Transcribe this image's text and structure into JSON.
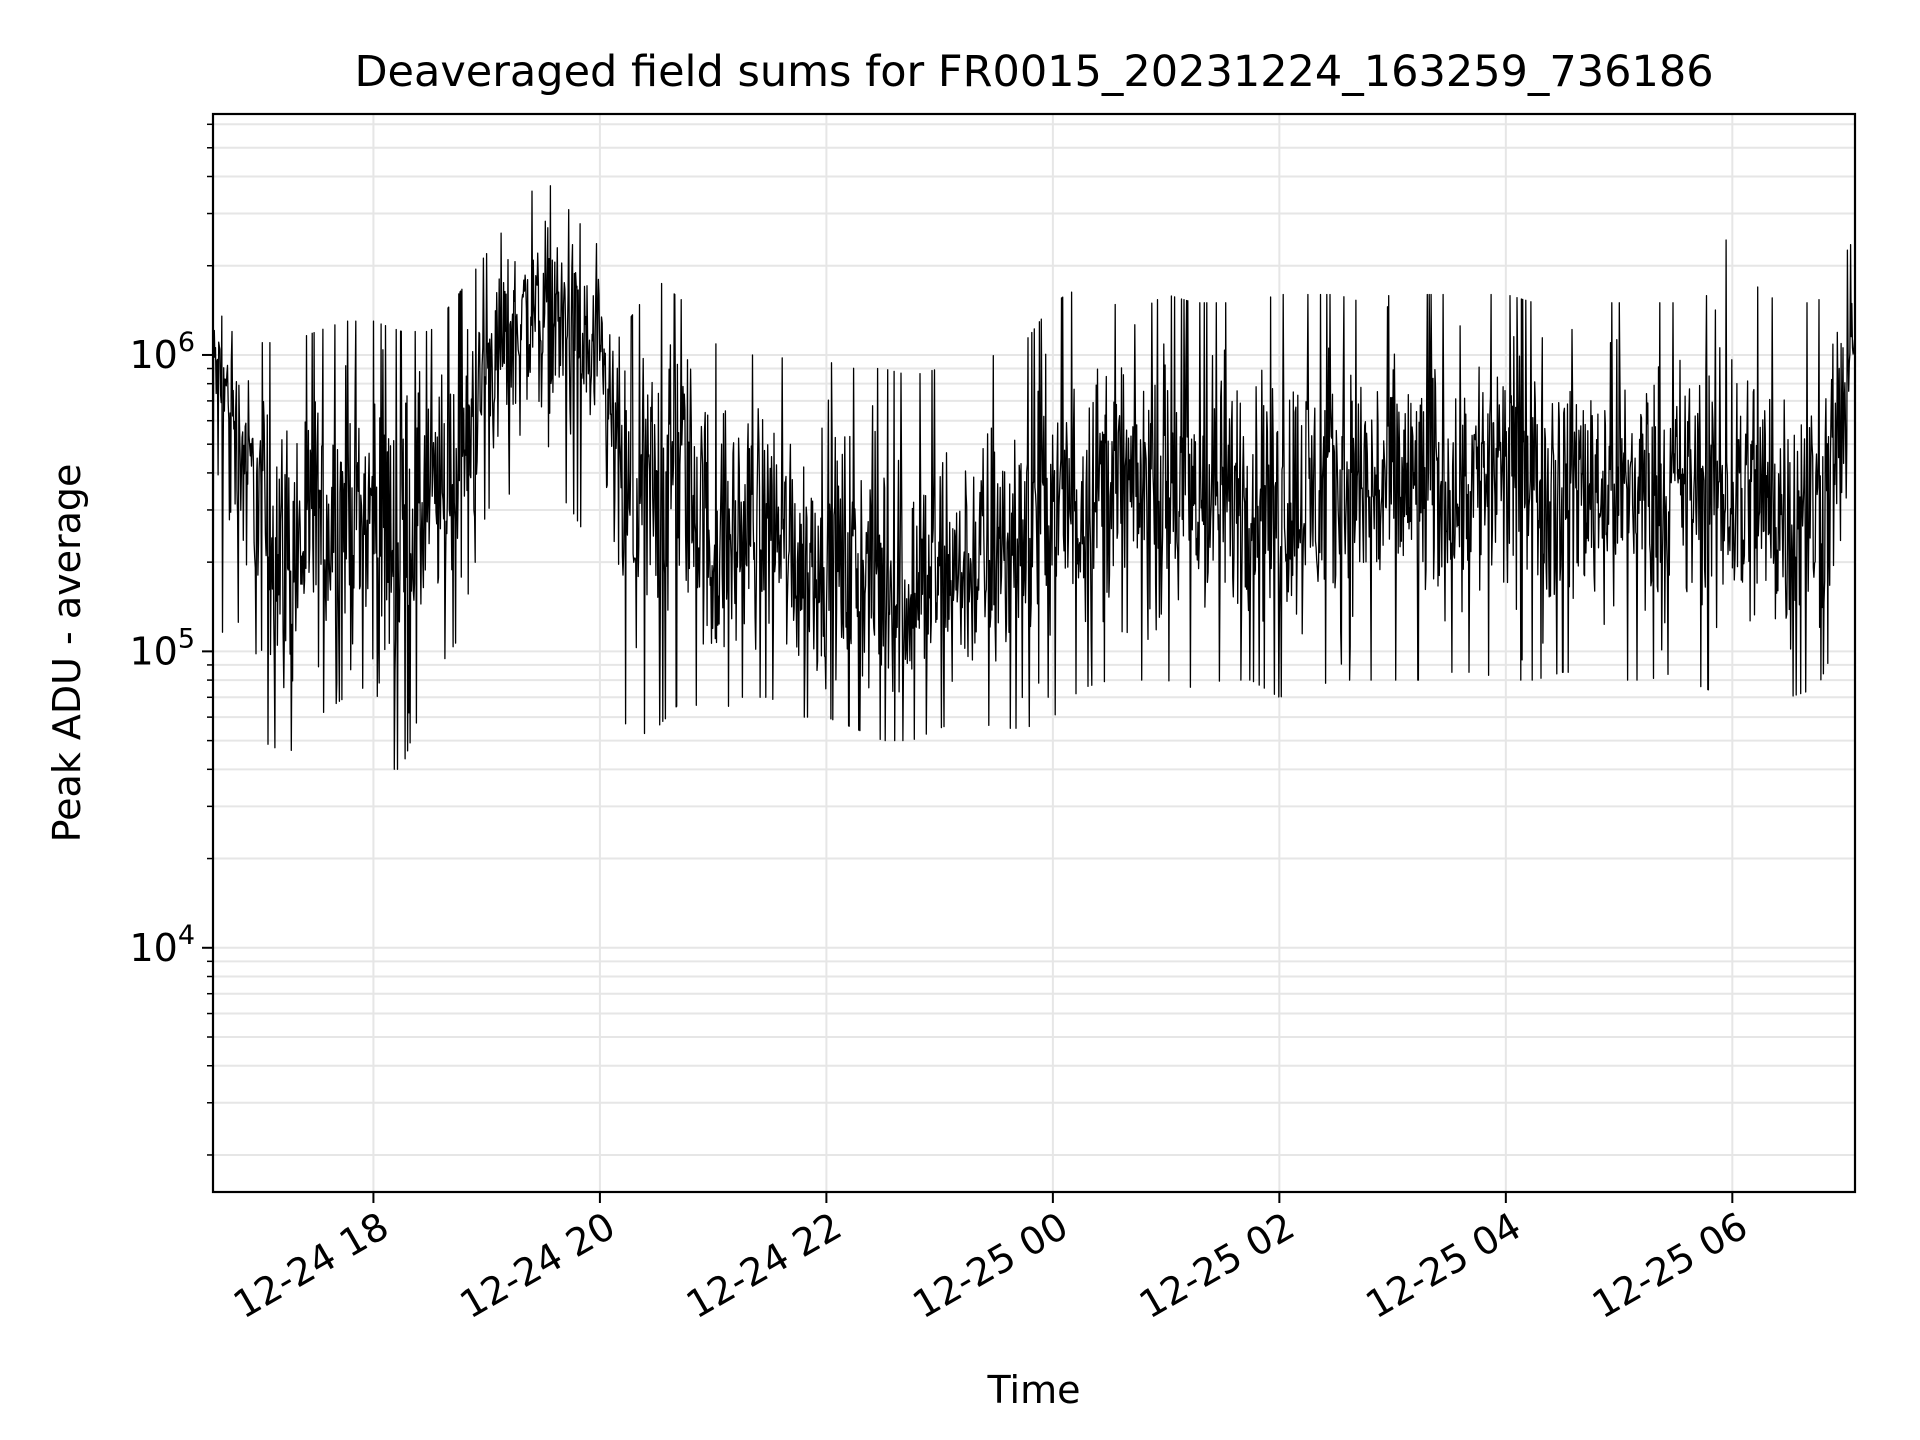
{
  "chart_data": {
    "type": "line",
    "title": "Deaveraged field sums for FR0015_20231224_163259_736186",
    "xlabel": "Time",
    "ylabel": "Peak ADU - average",
    "x_range": [
      "2023-12-24 16:35",
      "2023-12-25 07:05"
    ],
    "ylim": [
      1500,
      6500000
    ],
    "yscale": "log",
    "grid": true,
    "line_color": "#000000",
    "x_ticks": [
      {
        "label": "12-24 18",
        "time": "2023-12-24 18:00"
      },
      {
        "label": "12-24 20",
        "time": "2023-12-24 20:00"
      },
      {
        "label": "12-24 22",
        "time": "2023-12-24 22:00"
      },
      {
        "label": "12-25 00",
        "time": "2023-12-25 00:00"
      },
      {
        "label": "12-25 02",
        "time": "2023-12-25 02:00"
      },
      {
        "label": "12-25 04",
        "time": "2023-12-25 04:00"
      },
      {
        "label": "12-25 06",
        "time": "2023-12-25 06:00"
      }
    ],
    "y_ticks": [
      {
        "base": "10",
        "exp": "4",
        "value": 10000
      },
      {
        "base": "10",
        "exp": "5",
        "value": 100000
      },
      {
        "base": "10",
        "exp": "6",
        "value": 1000000
      }
    ],
    "series": [
      {
        "x": [
          "2023-12-24 16:35",
          "2023-12-24 16:45",
          "2023-12-24 17:00",
          "2023-12-24 17:15",
          "2023-12-24 17:30",
          "2023-12-24 17:45",
          "2023-12-24 18:00",
          "2023-12-24 18:15",
          "2023-12-24 18:30",
          "2023-12-24 18:45",
          "2023-12-24 19:00",
          "2023-12-24 19:15",
          "2023-12-24 19:30",
          "2023-12-24 19:45",
          "2023-12-24 20:00",
          "2023-12-24 20:15",
          "2023-12-24 20:30",
          "2023-12-24 20:45",
          "2023-12-24 21:00",
          "2023-12-24 21:15",
          "2023-12-24 21:30",
          "2023-12-24 21:45",
          "2023-12-24 22:00",
          "2023-12-24 22:15",
          "2023-12-24 22:30",
          "2023-12-24 22:45",
          "2023-12-24 23:00",
          "2023-12-24 23:15",
          "2023-12-24 23:30",
          "2023-12-24 23:45",
          "2023-12-25 00:00",
          "2023-12-25 00:15",
          "2023-12-25 00:30",
          "2023-12-25 00:45",
          "2023-12-25 01:00",
          "2023-12-25 01:15",
          "2023-12-25 01:30",
          "2023-12-25 01:45",
          "2023-12-25 02:00",
          "2023-12-25 02:15",
          "2023-12-25 02:30",
          "2023-12-25 02:45",
          "2023-12-25 03:00",
          "2023-12-25 03:15",
          "2023-12-25 03:30",
          "2023-12-25 03:45",
          "2023-12-25 04:00",
          "2023-12-25 04:15",
          "2023-12-25 04:30",
          "2023-12-25 04:45",
          "2023-12-25 05:00",
          "2023-12-25 05:15",
          "2023-12-25 05:30",
          "2023-12-25 05:45",
          "2023-12-25 06:00",
          "2023-12-25 06:15",
          "2023-12-25 06:30",
          "2023-12-25 06:45",
          "2023-12-25 07:05"
        ],
        "y": [
          1000000,
          700000,
          300000,
          200000,
          250000,
          300000,
          280000,
          250000,
          300000,
          400000,
          900000,
          1300000,
          1500000,
          1300000,
          900000,
          300000,
          350000,
          500000,
          200000,
          250000,
          300000,
          200000,
          200000,
          180000,
          160000,
          150000,
          170000,
          180000,
          200000,
          250000,
          300000,
          350000,
          380000,
          350000,
          350000,
          320000,
          330000,
          350000,
          330000,
          330000,
          340000,
          350000,
          350000,
          360000,
          380000,
          400000,
          400000,
          400000,
          380000,
          370000,
          370000,
          360000,
          360000,
          350000,
          330000,
          320000,
          300000,
          280000,
          1000000
        ],
        "low": [
          150000,
          90000,
          50000,
          45000,
          60000,
          70000,
          40000,
          40000,
          80000,
          110000,
          300000,
          350000,
          400000,
          300000,
          200000,
          50000,
          55000,
          70000,
          60000,
          70000,
          70000,
          60000,
          60000,
          55000,
          50000,
          50000,
          55000,
          60000,
          55000,
          55000,
          60000,
          75000,
          80000,
          80000,
          80000,
          75000,
          80000,
          80000,
          70000,
          75000,
          80000,
          80000,
          80000,
          80000,
          85000,
          85000,
          80000,
          80000,
          85000,
          85000,
          80000,
          80000,
          85000,
          75000,
          70000,
          70000,
          70000,
          75000,
          150000
        ],
        "high": [
          1500000,
          1200000,
          1100000,
          1100000,
          1200000,
          1300000,
          1300000,
          1200000,
          1200000,
          1600000,
          2200000,
          3000000,
          4000000,
          3000000,
          2300000,
          1300000,
          1800000,
          1500000,
          1100000,
          1000000,
          1000000,
          950000,
          950000,
          900000,
          900000,
          850000,
          900000,
          950000,
          1000000,
          1100000,
          1500000,
          1700000,
          1500000,
          1400000,
          1600000,
          1500000,
          1500000,
          1500000,
          1600000,
          1600000,
          1600000,
          1500000,
          1600000,
          1600000,
          1600000,
          1600000,
          1600000,
          1500000,
          1600000,
          1500000,
          1500000,
          1500000,
          1500000,
          1500000,
          2800000,
          1600000,
          1500000,
          1500000,
          2500000
        ]
      }
    ]
  }
}
